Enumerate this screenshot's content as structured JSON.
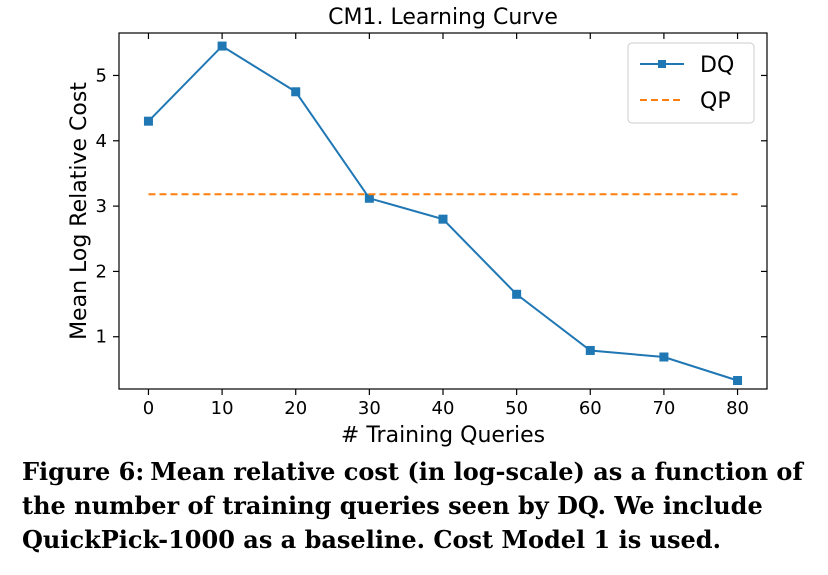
{
  "chart_data": {
    "type": "line",
    "title": "CM1. Learning Curve",
    "xlabel": "# Training Queries",
    "ylabel": "Mean Log Relative Cost",
    "xlim": [
      -4,
      84
    ],
    "ylim": [
      0.2,
      5.65
    ],
    "xticks": [
      0,
      10,
      20,
      30,
      40,
      50,
      60,
      70,
      80
    ],
    "yticks": [
      1,
      2,
      3,
      4,
      5
    ],
    "grid": false,
    "legend_position": "top-right",
    "series": [
      {
        "name": "DQ",
        "color": "#1f77b4",
        "style": "solid",
        "marker": "square",
        "x": [
          0,
          10,
          20,
          30,
          40,
          50,
          60,
          70,
          80
        ],
        "y": [
          4.3,
          5.45,
          4.75,
          3.12,
          2.8,
          1.65,
          0.79,
          0.69,
          0.33
        ]
      },
      {
        "name": "QP",
        "color": "#ff7f0e",
        "style": "dashed",
        "marker": "none",
        "x": [
          0,
          80
        ],
        "y": [
          3.18,
          3.18
        ]
      }
    ]
  },
  "caption": {
    "label": "Figure 6:",
    "text": "Mean relative cost (in log-scale) as a function of the number of training queries seen by DQ. We include QuickPick-1000 as a baseline. Cost Model 1 is used."
  }
}
